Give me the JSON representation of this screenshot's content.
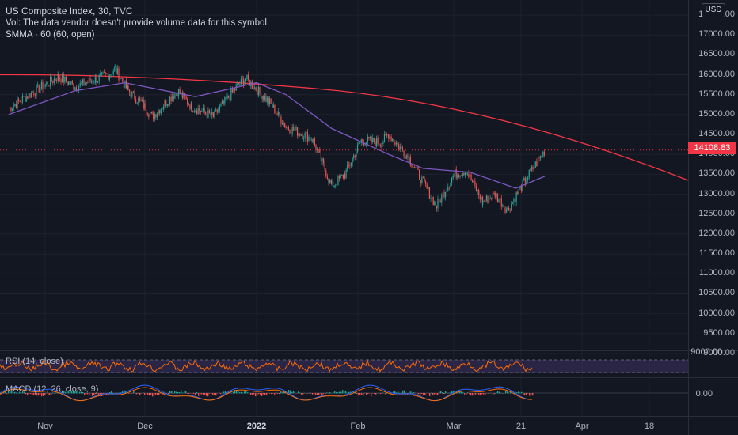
{
  "header": {
    "symbol_title": "US Composite Index, 30, TVC",
    "vol_note": "Vol: The data vendor doesn't provide volume data for this symbol.",
    "smma_label": "SMMA · 60 (60, open)"
  },
  "currency": "USD",
  "last_price": "14108.83",
  "price_axis": {
    "ticks": [
      "17500.00",
      "17000.00",
      "16500.00",
      "16000.00",
      "15500.00",
      "15000.00",
      "14500.00",
      "14000.00",
      "13500.00",
      "13000.00",
      "12500.00",
      "12000.00",
      "11500.00",
      "11000.00",
      "10500.00",
      "10000.00",
      "9500.00",
      "9000.00"
    ]
  },
  "rsi": {
    "label": "RSI (14, close)",
    "tick": "9000.00"
  },
  "macd": {
    "label": "MACD (12, 26, close, 9)",
    "tick": "0.00"
  },
  "time_axis": {
    "labels": [
      "Nov",
      "Dec",
      "2022",
      "Feb",
      "Mar",
      "21",
      "Apr",
      "18"
    ]
  },
  "colors": {
    "background": "#131722",
    "up": "#26a69a",
    "down": "#ef5350",
    "smma": "#7e57c2",
    "curve": "#f23645",
    "rsi": "#ff6d00",
    "macd": "#2962ff",
    "signal": "#ff6d00"
  },
  "chart_data": {
    "type": "line",
    "series": [
      {
        "name": "US Composite Index",
        "points": [
          [
            "Oct 20",
            15150
          ],
          [
            "Oct 28",
            15600
          ],
          [
            "Nov 5",
            15950
          ],
          [
            "Nov 10",
            15700
          ],
          [
            "Nov 20",
            16000
          ],
          [
            "Nov 22",
            16150
          ],
          [
            "Nov 26",
            15600
          ],
          [
            "Dec 1",
            15200
          ],
          [
            "Dec 3",
            14950
          ],
          [
            "Dec 10",
            15600
          ],
          [
            "Dec 14",
            15200
          ],
          [
            "Dec 20",
            14950
          ],
          [
            "Dec 27",
            15750
          ],
          [
            "Dec 29",
            15900
          ],
          [
            "Jan 5",
            15300
          ],
          [
            "Jan 10",
            14700
          ],
          [
            "Jan 18",
            14400
          ],
          [
            "Jan 24",
            13200
          ],
          [
            "Jan 28",
            13500
          ],
          [
            "Feb 2",
            14350
          ],
          [
            "Feb 8",
            14300
          ],
          [
            "Feb 10",
            14500
          ],
          [
            "Feb 16",
            13900
          ],
          [
            "Feb 24",
            12700
          ],
          [
            "Mar 1",
            13500
          ],
          [
            "Mar 4",
            13600
          ],
          [
            "Mar 8",
            12800
          ],
          [
            "Mar 11",
            13000
          ],
          [
            "Mar 14",
            12600
          ],
          [
            "Mar 18",
            13300
          ],
          [
            "Mar 23",
            14100
          ]
        ]
      },
      {
        "name": "SMMA · 60",
        "points": [
          [
            "Oct 20",
            15000
          ],
          [
            "Nov 10",
            15600
          ],
          [
            "Nov 25",
            15800
          ],
          [
            "Dec 15",
            15450
          ],
          [
            "Jan 1",
            15800
          ],
          [
            "Jan 10",
            15500
          ],
          [
            "Jan 24",
            14650
          ],
          [
            "Feb 10",
            14000
          ],
          [
            "Feb 20",
            13650
          ],
          [
            "Mar 5",
            13550
          ],
          [
            "Mar 16",
            13150
          ],
          [
            "Mar 23",
            13450
          ]
        ]
      }
    ],
    "ylim": [
      9000,
      17500
    ],
    "grid": true
  }
}
